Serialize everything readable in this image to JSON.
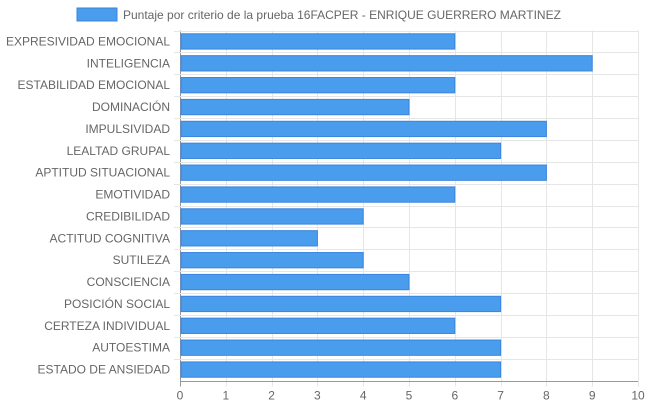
{
  "chart_data": {
    "type": "bar",
    "orientation": "horizontal",
    "title": "",
    "legend": {
      "position": "top",
      "entries": [
        "Puntaje por criterio de la prueba 16FACPER - ENRIQUE GUERRERO MARTINEZ"
      ]
    },
    "categories": [
      "EXPRESIVIDAD EMOCIONAL",
      "INTELIGENCIA",
      "ESTABILIDAD EMOCIONAL",
      "DOMINACIÓN",
      "IMPULSIVIDAD",
      "LEALTAD GRUPAL",
      "APTITUD SITUACIONAL",
      "EMOTIVIDAD",
      "CREDIBILIDAD",
      "ACTITUD COGNITIVA",
      "SUTILEZA",
      "CONSCIENCIA",
      "POSICIÓN SOCIAL",
      "CERTEZA INDIVIDUAL",
      "AUTOESTIMA",
      "ESTADO DE ANSIEDAD"
    ],
    "series": [
      {
        "name": "Puntaje por criterio de la prueba 16FACPER - ENRIQUE GUERRERO MARTINEZ",
        "values": [
          6,
          9,
          6,
          5,
          8,
          7,
          8,
          6,
          4,
          3,
          4,
          5,
          7,
          6,
          7,
          7
        ],
        "color": "#4a9ced",
        "border_color": "#3a85e0"
      }
    ],
    "x_ticks": [
      "0",
      "1",
      "2",
      "3",
      "4",
      "5",
      "6",
      "7",
      "8",
      "9",
      "10"
    ],
    "xlim": [
      0,
      10
    ],
    "xlabel": "",
    "ylabel": "",
    "grid": true,
    "colors": {
      "grid": "#e6e6e6",
      "axis": "#999999",
      "text": "#666666"
    }
  }
}
